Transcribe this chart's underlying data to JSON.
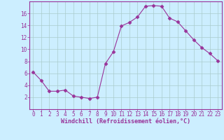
{
  "hours": [
    0,
    1,
    2,
    3,
    4,
    5,
    6,
    7,
    8,
    9,
    10,
    11,
    12,
    13,
    14,
    15,
    16,
    17,
    18,
    19,
    20,
    21,
    22,
    23
  ],
  "windchill": [
    6.2,
    4.8,
    3.0,
    3.0,
    3.2,
    2.2,
    2.0,
    1.8,
    2.0,
    7.6,
    9.6,
    13.9,
    14.5,
    15.4,
    17.2,
    17.3,
    17.2,
    15.2,
    14.6,
    13.1,
    11.6,
    10.3,
    9.3,
    8.1
  ],
  "line_color": "#993399",
  "marker": "D",
  "marker_size": 2.5,
  "bg_color": "#cceeff",
  "grid_color": "#aacccc",
  "xlabel": "Windchill (Refroidissement éolien,°C)",
  "ylim": [
    0,
    18
  ],
  "xlim": [
    -0.5,
    23.5
  ],
  "yticks": [
    2,
    4,
    6,
    8,
    10,
    12,
    14,
    16
  ],
  "xticks": [
    0,
    1,
    2,
    3,
    4,
    5,
    6,
    7,
    8,
    9,
    10,
    11,
    12,
    13,
    14,
    15,
    16,
    17,
    18,
    19,
    20,
    21,
    22,
    23
  ],
  "tick_fontsize": 5.5,
  "label_fontsize": 6.0
}
